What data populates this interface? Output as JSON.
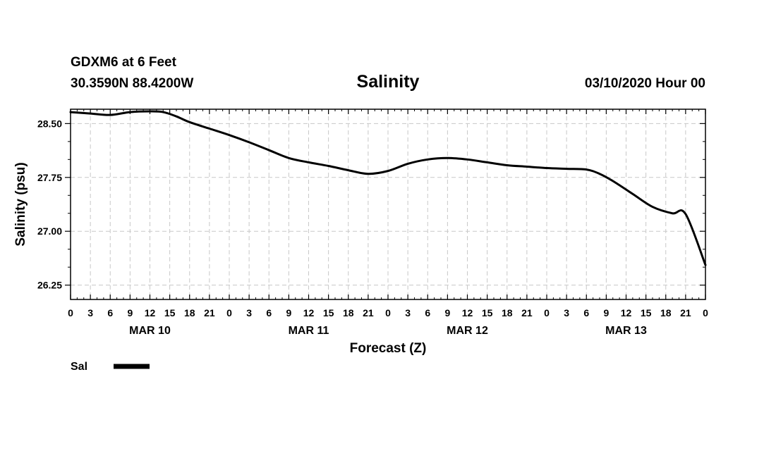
{
  "header": {
    "station": "GDXM6 at 6 Feet",
    "coords": "30.3590N 88.4200W",
    "title": "Salinity",
    "date": "03/10/2020 Hour 00"
  },
  "legend": {
    "label": "Sal"
  },
  "colors": {
    "line": "#000000",
    "grid": "#c8c8c8",
    "frame": "#000000"
  },
  "chart_data": {
    "type": "line",
    "title": "Salinity",
    "xlabel": "Forecast (Z)",
    "ylabel": "Salinity (psu)",
    "xlim": [
      0,
      96
    ],
    "ylim": [
      26.05,
      28.7
    ],
    "yticks": [
      26.25,
      27.0,
      27.75,
      28.5
    ],
    "ytick_labels": [
      "26.25",
      "27.00",
      "27.75",
      "28.50"
    ],
    "xticks": [
      0,
      3,
      6,
      9,
      12,
      15,
      18,
      21,
      24,
      27,
      30,
      33,
      36,
      39,
      42,
      45,
      48,
      51,
      54,
      57,
      60,
      63,
      66,
      69,
      72,
      75,
      78,
      81,
      84,
      87,
      90,
      93,
      96
    ],
    "xtick_labels": [
      "0",
      "3",
      "6",
      "9",
      "12",
      "15",
      "18",
      "21",
      "0",
      "3",
      "6",
      "9",
      "12",
      "15",
      "18",
      "21",
      "0",
      "3",
      "6",
      "9",
      "12",
      "15",
      "18",
      "21",
      "0",
      "3",
      "6",
      "9",
      "12",
      "15",
      "18",
      "21",
      "0"
    ],
    "day_labels": [
      {
        "label": "MAR 10",
        "hour": 12
      },
      {
        "label": "MAR 11",
        "hour": 36
      },
      {
        "label": "MAR 12",
        "hour": 60
      },
      {
        "label": "MAR 13",
        "hour": 84
      }
    ],
    "grid": true,
    "grid_style": "dashed",
    "legend_position": "bottom-left",
    "series": [
      {
        "name": "Sal",
        "x": [
          0,
          3,
          6,
          9,
          12,
          14,
          16,
          18,
          21,
          24,
          27,
          30,
          33,
          36,
          39,
          42,
          45,
          48,
          51,
          54,
          57,
          60,
          63,
          66,
          69,
          72,
          75,
          78,
          80,
          82,
          85,
          88,
          91,
          93,
          96
        ],
        "y": [
          28.66,
          28.64,
          28.62,
          28.66,
          28.67,
          28.66,
          28.6,
          28.52,
          28.43,
          28.34,
          28.24,
          28.13,
          28.02,
          27.96,
          27.91,
          27.85,
          27.8,
          27.84,
          27.94,
          28.0,
          28.02,
          28.0,
          27.96,
          27.92,
          27.9,
          27.88,
          27.87,
          27.86,
          27.8,
          27.7,
          27.52,
          27.34,
          27.25,
          27.24,
          26.53
        ]
      }
    ]
  }
}
